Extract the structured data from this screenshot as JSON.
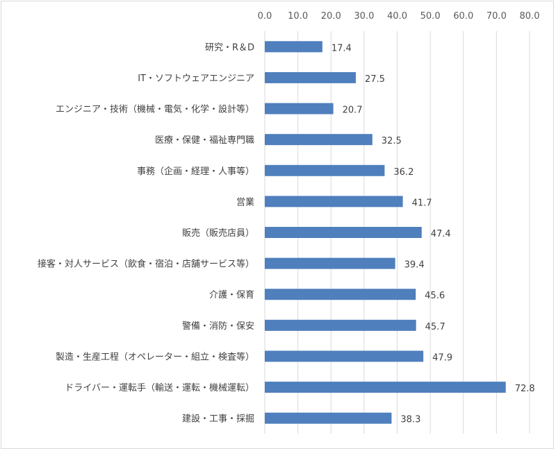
{
  "chart_data": {
    "type": "bar",
    "orientation": "horizontal",
    "title": "",
    "xlabel": "",
    "ylabel": "",
    "xlim": [
      0,
      80
    ],
    "ticks": [
      "0.0",
      "10.0",
      "20.0",
      "30.0",
      "40.0",
      "50.0",
      "60.0",
      "70.0",
      "80.0"
    ],
    "tick_values": [
      0,
      10,
      20,
      30,
      40,
      50,
      60,
      70,
      80
    ],
    "axis_position": "top",
    "grid": true,
    "legend": "none",
    "bar_color": "#4f7fbd",
    "categories": [
      "研究・R＆D",
      "IT・ソフトウェアエンジニア",
      "エンジニア・技術（機械・電気・化学・設計等）",
      "医療・保健・福祉専門職",
      "事務（企画・経理・人事等）",
      "営業",
      "販売（販売店員）",
      "接客・対人サービス（飲食・宿泊・店舗サービス等）",
      "介護・保育",
      "警備・消防・保安",
      "製造・生産工程（オペレーター・組立・検査等）",
      "ドライバー・運転手（輸送・運転・機械運転）",
      "建設・工事・採掘"
    ],
    "values": [
      17.4,
      27.5,
      20.7,
      32.5,
      36.2,
      41.7,
      47.4,
      39.4,
      45.6,
      45.7,
      47.9,
      72.8,
      38.3
    ],
    "value_labels": [
      "17.4",
      "27.5",
      "20.7",
      "32.5",
      "36.2",
      "41.7",
      "47.4",
      "39.4",
      "45.6",
      "45.7",
      "47.9",
      "72.8",
      "38.3"
    ]
  }
}
